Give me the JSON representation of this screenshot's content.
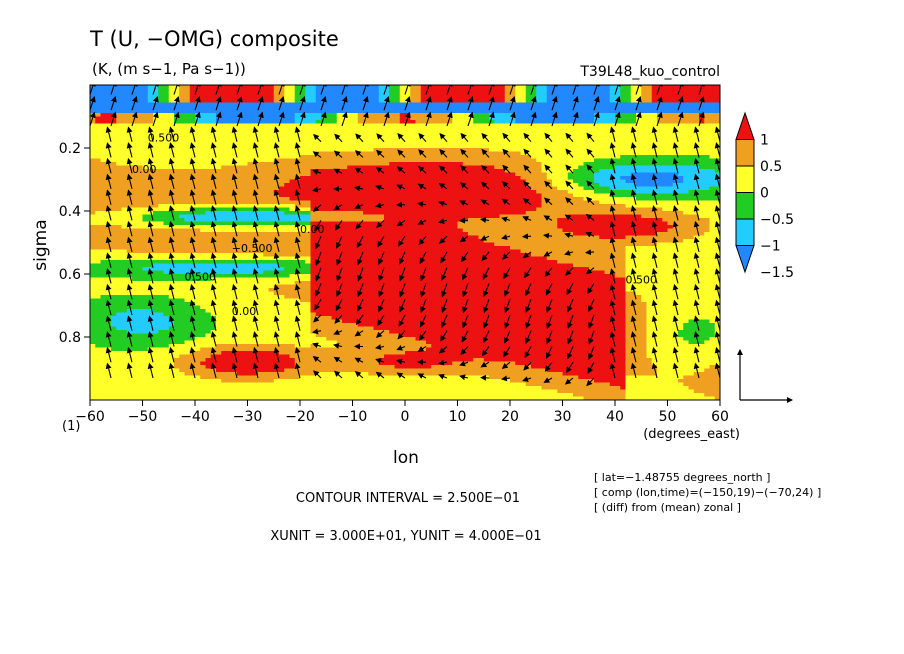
{
  "chart_data": {
    "type": "heatmap",
    "title": "T (U, −OMG) composite",
    "subtitle": "(K, (m s−1, Pa s−1))",
    "run_label": "T39L48_kuo_control",
    "xlabel": "lon",
    "x_units": "(degrees_east)",
    "ylabel": "sigma",
    "y_corner_label": "(1)",
    "xlim": [
      -60,
      60
    ],
    "ylim": [
      1.0,
      0.0
    ],
    "x_ticks": [
      "−60",
      "−50",
      "−40",
      "−30",
      "−20",
      "−10",
      "0",
      "10",
      "20",
      "30",
      "40",
      "50",
      "60"
    ],
    "y_ticks": [
      {
        "value": 0.2,
        "label": "0.2"
      },
      {
        "value": 0.4,
        "label": "0.4"
      },
      {
        "value": 0.6,
        "label": "0.6"
      },
      {
        "value": 0.8,
        "label": "0.8"
      }
    ],
    "colorbar": {
      "levels": [
        {
          "value": 1.0,
          "label": "1"
        },
        {
          "value": 0.5,
          "label": "0.5"
        },
        {
          "value": 0.0,
          "label": "0"
        },
        {
          "value": -0.5,
          "label": "−0.5"
        },
        {
          "value": -1.0,
          "label": "−1"
        },
        {
          "value": -1.5,
          "label": "−1.5"
        }
      ],
      "colors": [
        "#ee1111",
        "#f0a020",
        "#ffff2a",
        "#22cc22",
        "#22ccff",
        "#2288ff"
      ]
    },
    "contour_labels": [
      "0.500",
      "0.00",
      "−0.500",
      "0.00",
      "0.500",
      "0.00",
      "0.500"
    ],
    "contour_interval_text": "CONTOUR INTERVAL = 2.500E−01",
    "unit_text": "XUNIT = 3.000E+01, YUNIT = 4.000E−01",
    "info_lines": [
      "[ lat=−1.48755 degrees_north ]",
      "[ comp (lon,time)=(−150,19)−(−70,24) ]",
      "[ (diff) from (mean) zonal ]"
    ],
    "grid": false,
    "legend": "colorbar-right"
  }
}
